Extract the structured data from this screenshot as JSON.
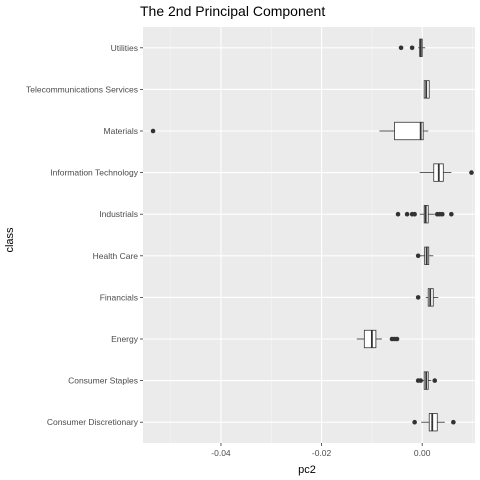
{
  "chart_data": {
    "type": "boxplot",
    "orientation": "horizontal",
    "title": "The 2nd Principal Component",
    "xlabel": "pc2",
    "ylabel": "class",
    "xlim": [
      -0.0555,
      0.0105
    ],
    "x_ticks": [
      -0.04,
      -0.02,
      0.0
    ],
    "x_tick_labels": [
      "-0.04",
      "-0.02",
      "0.00"
    ],
    "grid": true,
    "categories": [
      "Utilities",
      "Telecommunications Services",
      "Materials",
      "Information Technology",
      "Industrials",
      "Health Care",
      "Financials",
      "Energy",
      "Consumer Staples",
      "Consumer Discretionary"
    ],
    "boxes": [
      {
        "category": "Utilities",
        "whisker_low": -0.0008,
        "q1": -0.0005,
        "median": -0.0003,
        "q3": 0.0,
        "whisker_high": 0.0006,
        "outliers": [
          -0.0042,
          -0.002
        ]
      },
      {
        "category": "Telecommunications Services",
        "whisker_low": 0.0004,
        "q1": 0.0004,
        "median": 0.0008,
        "q3": 0.0014,
        "whisker_high": 0.0014,
        "outliers": []
      },
      {
        "category": "Materials",
        "whisker_low": -0.0085,
        "q1": -0.0055,
        "median": -0.0003,
        "q3": 0.0002,
        "whisker_high": 0.0012,
        "outliers": [
          -0.0535
        ]
      },
      {
        "category": "Information Technology",
        "whisker_low": -0.0005,
        "q1": 0.0023,
        "median": 0.0033,
        "q3": 0.0042,
        "whisker_high": 0.0058,
        "outliers": [
          0.0098
        ]
      },
      {
        "category": "Industrials",
        "whisker_low": -0.0005,
        "q1": 0.0004,
        "median": 0.0007,
        "q3": 0.0012,
        "whisker_high": 0.0025,
        "outliers": [
          -0.0048,
          -0.003,
          -0.002,
          -0.0015,
          0.003,
          0.0035,
          0.004,
          0.0058
        ]
      },
      {
        "category": "Health Care",
        "whisker_low": -0.0005,
        "q1": 0.0005,
        "median": 0.0009,
        "q3": 0.0013,
        "whisker_high": 0.0022,
        "outliers": [
          -0.0008
        ]
      },
      {
        "category": "Financials",
        "whisker_low": 0.0007,
        "q1": 0.0012,
        "median": 0.0016,
        "q3": 0.0022,
        "whisker_high": 0.0032,
        "outliers": [
          -0.0008
        ]
      },
      {
        "category": "Energy",
        "whisker_low": -0.013,
        "q1": -0.0115,
        "median": -0.01,
        "q3": -0.0092,
        "whisker_high": -0.008,
        "outliers": [
          -0.006,
          -0.0055,
          -0.005
        ]
      },
      {
        "category": "Consumer Staples",
        "whisker_low": -0.0002,
        "q1": 0.0004,
        "median": 0.0008,
        "q3": 0.0012,
        "whisker_high": 0.0018,
        "outliers": [
          -0.0008,
          -0.0003,
          0.0025
        ]
      },
      {
        "category": "Consumer Discretionary",
        "whisker_low": -0.0002,
        "q1": 0.0014,
        "median": 0.002,
        "q3": 0.003,
        "whisker_high": 0.0045,
        "outliers": [
          -0.0015,
          0.0062
        ]
      }
    ],
    "colors": {
      "panel": "#ebebeb",
      "grid_major": "#ffffff",
      "grid_minor": "#f5f5f5",
      "box_fill": "#ffffff",
      "box_stroke": "#333333",
      "outlier": "#333333"
    }
  }
}
